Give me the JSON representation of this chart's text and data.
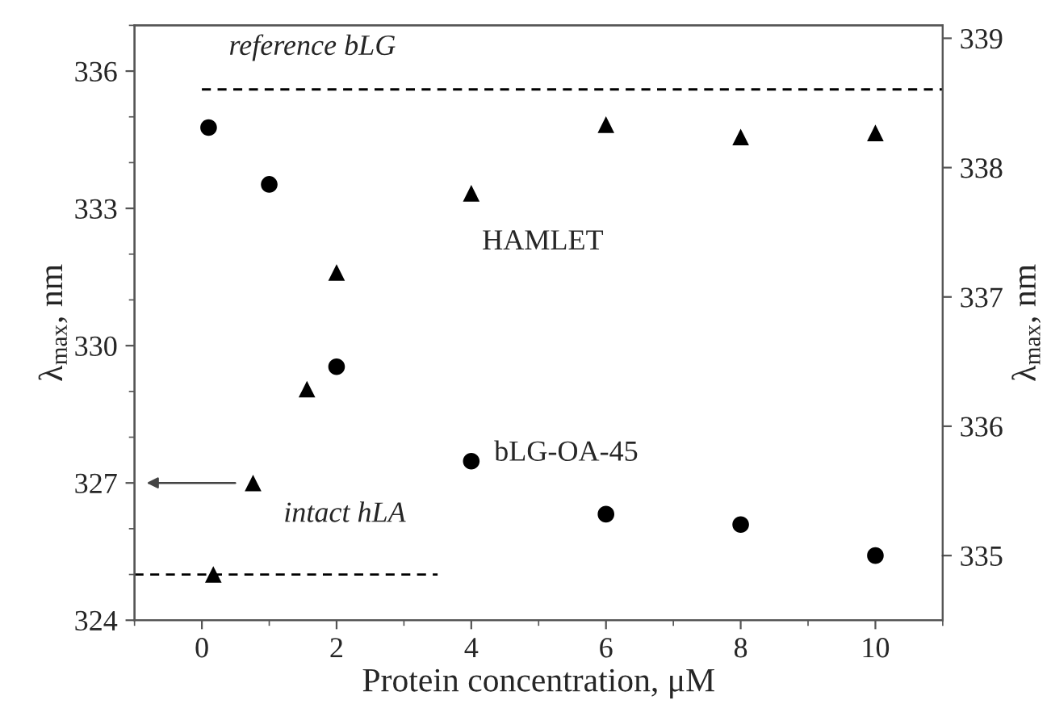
{
  "chart_data": {
    "type": "scatter",
    "xlabel": "Protein concentration, μM",
    "ylabel": "λ$_{max}$, nm",
    "y2label": "λ$_{max}$, nm",
    "xlim": [
      -1,
      11
    ],
    "xticks": [
      0,
      2,
      4,
      6,
      8,
      10
    ],
    "ylim": [
      324,
      337
    ],
    "yticks": [
      324,
      327,
      330,
      333,
      336
    ],
    "y2lim": [
      334.5,
      339.1
    ],
    "y2ticks": [
      335,
      336,
      337,
      338,
      339
    ],
    "grid": false,
    "legend": false,
    "series": [
      {
        "marker": "triangle",
        "color": "#000000",
        "x": [
          0.17,
          0.76,
          1.56,
          2.0,
          4.0,
          6.0,
          8.0,
          10.0
        ],
        "values": [
          325.0,
          327.0,
          329.05,
          331.6,
          333.33,
          334.83,
          334.56,
          334.65
        ]
      },
      {
        "marker": "circle",
        "color": "#000000",
        "axis": "y2",
        "x": [
          0.1,
          1.0,
          2.0,
          4.0,
          6.0,
          8.0,
          10.0
        ],
        "values": [
          338.31,
          337.87,
          336.46,
          335.73,
          335.32,
          335.24,
          335.0
        ]
      },
      {
        "type": "line",
        "line_style": "dashed",
        "color": "#000000",
        "x": [
          0,
          11
        ],
        "values": [
          335.6,
          335.6
        ]
      },
      {
        "type": "line",
        "line_style": "dashed",
        "color": "#000000",
        "x": [
          -1,
          3.5
        ],
        "values": [
          325.0,
          325.0
        ]
      }
    ],
    "annotations": [
      "reference bLG",
      "intact hLA",
      "HAMLET",
      "bLG-OA-45"
    ]
  }
}
